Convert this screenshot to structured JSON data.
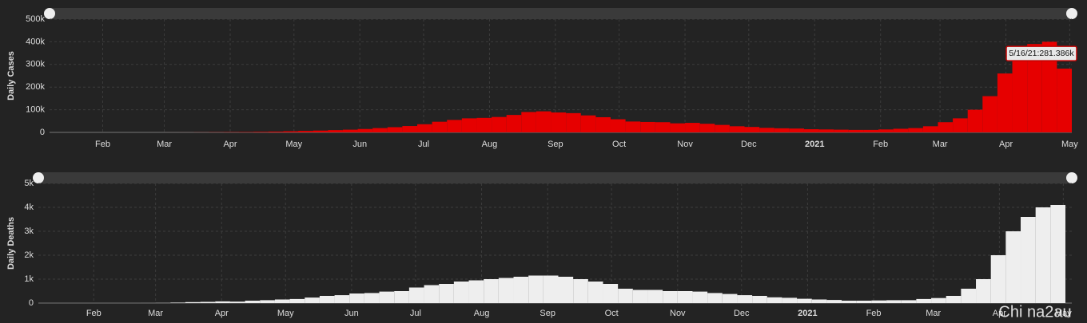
{
  "chart_data": [
    {
      "type": "bar",
      "ylabel": "Daily Cases",
      "color": "#e60000",
      "grid": true,
      "tooltip": "5/16/21:281.386k",
      "x": [
        "2020-02-02",
        "2020-02-09",
        "2020-02-16",
        "2020-02-23",
        "2020-03-01",
        "2020-03-08",
        "2020-03-15",
        "2020-03-22",
        "2020-03-29",
        "2020-04-05",
        "2020-04-12",
        "2020-04-19",
        "2020-04-26",
        "2020-05-03",
        "2020-05-10",
        "2020-05-17",
        "2020-05-24",
        "2020-05-31",
        "2020-06-07",
        "2020-06-14",
        "2020-06-21",
        "2020-06-28",
        "2020-07-05",
        "2020-07-12",
        "2020-07-19",
        "2020-07-26",
        "2020-08-02",
        "2020-08-09",
        "2020-08-16",
        "2020-08-23",
        "2020-08-30",
        "2020-09-06",
        "2020-09-13",
        "2020-09-20",
        "2020-09-27",
        "2020-10-04",
        "2020-10-11",
        "2020-10-18",
        "2020-10-25",
        "2020-11-01",
        "2020-11-08",
        "2020-11-15",
        "2020-11-22",
        "2020-11-29",
        "2020-12-06",
        "2020-12-13",
        "2020-12-20",
        "2020-12-27",
        "2021-01-03",
        "2021-01-10",
        "2021-01-17",
        "2021-01-24",
        "2021-01-31",
        "2021-02-07",
        "2021-02-14",
        "2021-02-21",
        "2021-02-28",
        "2021-03-07",
        "2021-03-14",
        "2021-03-21",
        "2021-03-28",
        "2021-04-04",
        "2021-04-11",
        "2021-04-18",
        "2021-04-25",
        "2021-05-02",
        "2021-05-09",
        "2021-05-16"
      ],
      "values": [
        0,
        0,
        0,
        0,
        0,
        10,
        20,
        80,
        150,
        500,
        900,
        1300,
        1700,
        2500,
        3500,
        5000,
        6500,
        8000,
        10000,
        12000,
        15000,
        19000,
        23000,
        28000,
        36000,
        47000,
        55000,
        62000,
        64000,
        68000,
        77000,
        90000,
        93000,
        88000,
        85000,
        75000,
        67000,
        58000,
        48000,
        46000,
        45000,
        40000,
        42000,
        38000,
        33000,
        27000,
        24000,
        20000,
        18000,
        17000,
        14000,
        13000,
        12000,
        11000,
        11000,
        13000,
        16000,
        19000,
        27000,
        45000,
        62000,
        100000,
        160000,
        260000,
        350000,
        390000,
        400000,
        281386
      ],
      "xlim": [
        "2020-01-21",
        "2021-05-16"
      ],
      "xticks": [
        {
          "value": "2020-02-15",
          "label": "Feb"
        },
        {
          "value": "2020-03-15",
          "label": "Mar"
        },
        {
          "value": "2020-04-15",
          "label": "Apr"
        },
        {
          "value": "2020-05-15",
          "label": "May"
        },
        {
          "value": "2020-06-15",
          "label": "Jun"
        },
        {
          "value": "2020-07-15",
          "label": "Jul"
        },
        {
          "value": "2020-08-15",
          "label": "Aug"
        },
        {
          "value": "2020-09-15",
          "label": "Sep"
        },
        {
          "value": "2020-10-15",
          "label": "Oct"
        },
        {
          "value": "2020-11-15",
          "label": "Nov"
        },
        {
          "value": "2020-12-15",
          "label": "Dec"
        },
        {
          "value": "2021-01-15",
          "label": "2021"
        },
        {
          "value": "2021-02-15",
          "label": "Feb"
        },
        {
          "value": "2021-03-15",
          "label": "Mar"
        },
        {
          "value": "2021-04-15",
          "label": "Apr"
        },
        {
          "value": "2021-05-15",
          "label": "May"
        }
      ],
      "ylim": [
        0,
        500000
      ],
      "yticks": [
        0,
        {
          "value": 100000,
          "label": "100k"
        },
        {
          "value": 200000,
          "label": "200k"
        },
        {
          "value": 300000,
          "label": "300k"
        },
        {
          "value": 400000,
          "label": "400k"
        },
        {
          "value": 500000,
          "label": "500k"
        }
      ]
    },
    {
      "type": "bar",
      "ylabel": "Daily Deaths",
      "color": "#eeeeee",
      "grid": true,
      "x": [
        "2020-02-02",
        "2020-02-09",
        "2020-02-16",
        "2020-02-23",
        "2020-03-01",
        "2020-03-08",
        "2020-03-15",
        "2020-03-22",
        "2020-03-29",
        "2020-04-05",
        "2020-04-12",
        "2020-04-19",
        "2020-04-26",
        "2020-05-03",
        "2020-05-10",
        "2020-05-17",
        "2020-05-24",
        "2020-05-31",
        "2020-06-07",
        "2020-06-14",
        "2020-06-21",
        "2020-06-28",
        "2020-07-05",
        "2020-07-12",
        "2020-07-19",
        "2020-07-26",
        "2020-08-02",
        "2020-08-09",
        "2020-08-16",
        "2020-08-23",
        "2020-08-30",
        "2020-09-06",
        "2020-09-13",
        "2020-09-20",
        "2020-09-27",
        "2020-10-04",
        "2020-10-11",
        "2020-10-18",
        "2020-10-25",
        "2020-11-01",
        "2020-11-08",
        "2020-11-15",
        "2020-11-22",
        "2020-11-29",
        "2020-12-06",
        "2020-12-13",
        "2020-12-20",
        "2020-12-27",
        "2021-01-03",
        "2021-01-10",
        "2021-01-17",
        "2021-01-24",
        "2021-01-31",
        "2021-02-07",
        "2021-02-14",
        "2021-02-21",
        "2021-02-28",
        "2021-03-07",
        "2021-03-14",
        "2021-03-21",
        "2021-03-28",
        "2021-04-04",
        "2021-04-11",
        "2021-04-18",
        "2021-04-25",
        "2021-05-02",
        "2021-05-09",
        "2021-05-16"
      ],
      "values": [
        0,
        0,
        0,
        0,
        0,
        0,
        1,
        5,
        20,
        40,
        50,
        70,
        60,
        100,
        120,
        150,
        170,
        230,
        300,
        330,
        400,
        420,
        480,
        500,
        650,
        750,
        800,
        900,
        950,
        1000,
        1050,
        1100,
        1150,
        1150,
        1100,
        1000,
        900,
        800,
        600,
        550,
        550,
        500,
        500,
        480,
        420,
        380,
        330,
        300,
        240,
        220,
        180,
        150,
        130,
        100,
        100,
        110,
        120,
        120,
        170,
        210,
        300,
        600,
        1000,
        2000,
        3000,
        3600,
        4000,
        4100
      ],
      "xlim": [
        "2020-01-20",
        "2021-05-19"
      ],
      "xticks": [
        {
          "value": "2020-02-15",
          "label": "Feb"
        },
        {
          "value": "2020-03-15",
          "label": "Mar"
        },
        {
          "value": "2020-04-15",
          "label": "Apr"
        },
        {
          "value": "2020-05-15",
          "label": "May"
        },
        {
          "value": "2020-06-15",
          "label": "Jun"
        },
        {
          "value": "2020-07-15",
          "label": "Jul"
        },
        {
          "value": "2020-08-15",
          "label": "Aug"
        },
        {
          "value": "2020-09-15",
          "label": "Sep"
        },
        {
          "value": "2020-10-15",
          "label": "Oct"
        },
        {
          "value": "2020-11-15",
          "label": "Nov"
        },
        {
          "value": "2020-12-15",
          "label": "Dec"
        },
        {
          "value": "2021-01-15",
          "label": "2021"
        },
        {
          "value": "2021-02-15",
          "label": "Feb"
        },
        {
          "value": "2021-03-15",
          "label": "Mar"
        },
        {
          "value": "2021-04-15",
          "label": "Apr"
        },
        {
          "value": "2021-05-15",
          "label": "May"
        }
      ],
      "ylim": [
        0,
        5000
      ],
      "yticks": [
        0,
        {
          "value": 1000,
          "label": "1k"
        },
        {
          "value": 2000,
          "label": "2k"
        },
        {
          "value": 3000,
          "label": "3k"
        },
        {
          "value": 4000,
          "label": "4k"
        },
        {
          "value": 5000,
          "label": "5k"
        }
      ]
    }
  ],
  "watermark": "Chi na2au"
}
